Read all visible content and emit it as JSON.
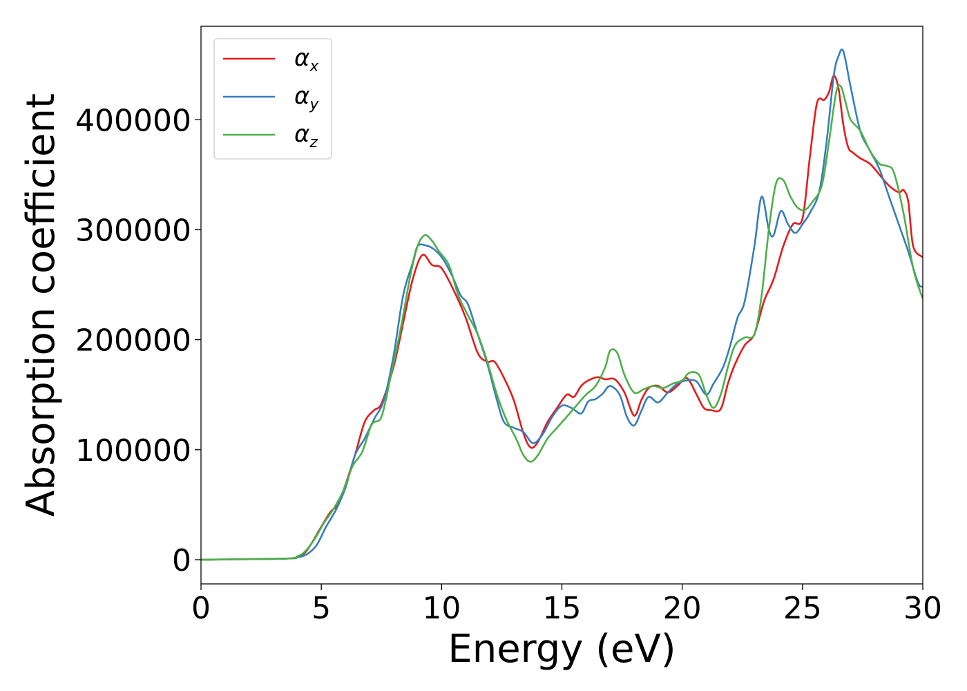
{
  "chart_data": {
    "type": "line",
    "title": "",
    "xlabel": "Energy (eV)",
    "ylabel": "Absorption coefficient",
    "xlim": [
      0,
      30
    ],
    "ylim": [
      -22000,
      485000
    ],
    "xticks": [
      0,
      5,
      10,
      15,
      20,
      25,
      30
    ],
    "xtick_labels": [
      "0",
      "5",
      "10",
      "15",
      "20",
      "25",
      "30"
    ],
    "yticks": [
      0,
      100000,
      200000,
      300000,
      400000
    ],
    "ytick_labels": [
      "0",
      "100000",
      "200000",
      "300000",
      "400000"
    ],
    "grid": false,
    "legend_position": "top-left",
    "series": [
      {
        "name": "α",
        "subscript": "x",
        "color": "#e41a1c",
        "x": [
          0,
          3.5,
          4.0,
          4.3,
          4.6,
          5.0,
          5.4,
          5.7,
          6.0,
          6.4,
          6.8,
          7.2,
          7.5,
          8.0,
          8.4,
          8.8,
          9.2,
          9.6,
          10.0,
          10.5,
          11.0,
          11.5,
          11.9,
          12.2,
          12.6,
          13.0,
          13.4,
          13.7,
          14.0,
          14.4,
          14.8,
          15.2,
          15.5,
          15.8,
          16.1,
          16.5,
          16.8,
          17.2,
          17.6,
          18.0,
          18.3,
          18.6,
          19.0,
          19.4,
          19.8,
          20.2,
          20.6,
          20.9,
          21.2,
          21.6,
          21.9,
          22.2,
          22.6,
          23.0,
          23.4,
          23.8,
          24.2,
          24.6,
          25.0,
          25.3,
          25.6,
          25.9,
          26.1,
          26.3,
          26.5,
          26.7,
          26.9,
          27.1,
          27.4,
          27.8,
          28.2,
          28.6,
          29.0,
          29.2,
          29.4,
          29.6,
          30.0
        ],
        "y": [
          0,
          1000,
          3000,
          6000,
          15000,
          30000,
          44000,
          50000,
          68000,
          95000,
          125000,
          136000,
          142000,
          175000,
          215000,
          255000,
          277000,
          268000,
          265000,
          245000,
          220000,
          188000,
          180000,
          180000,
          165000,
          145000,
          115000,
          102000,
          107000,
          125000,
          138000,
          150000,
          148000,
          158000,
          163000,
          166000,
          164000,
          164000,
          152000,
          131000,
          145000,
          156000,
          158000,
          152000,
          158000,
          165000,
          150000,
          138000,
          136000,
          137000,
          160000,
          178000,
          195000,
          205000,
          235000,
          255000,
          285000,
          305000,
          310000,
          365000,
          415000,
          418000,
          425000,
          440000,
          428000,
          395000,
          375000,
          370000,
          365000,
          360000,
          350000,
          340000,
          334000,
          336000,
          325000,
          285000,
          275000
        ]
      },
      {
        "name": "α",
        "subscript": "y",
        "color": "#377eb8",
        "x": [
          0,
          3.5,
          4.0,
          4.4,
          4.8,
          5.2,
          5.6,
          6.0,
          6.4,
          6.8,
          7.2,
          7.6,
          8.0,
          8.4,
          8.8,
          9.0,
          9.3,
          9.7,
          10.1,
          10.5,
          10.8,
          11.1,
          11.5,
          11.9,
          12.3,
          12.6,
          13.0,
          13.4,
          13.8,
          14.2,
          14.6,
          15.0,
          15.4,
          15.8,
          16.1,
          16.4,
          16.7,
          17.0,
          17.4,
          17.7,
          18.0,
          18.3,
          18.6,
          19.0,
          19.4,
          19.8,
          20.2,
          20.6,
          21.0,
          21.3,
          21.7,
          22.0,
          22.3,
          22.6,
          23.0,
          23.3,
          23.6,
          23.8,
          24.1,
          24.4,
          24.7,
          25.0,
          25.3,
          25.7,
          26.0,
          26.3,
          26.5,
          26.7,
          27.0,
          27.4,
          27.8,
          28.2,
          28.6,
          29.0,
          29.4,
          29.8,
          30.0
        ],
        "y": [
          0,
          1000,
          2000,
          5000,
          13000,
          30000,
          45000,
          65000,
          95000,
          110000,
          128000,
          145000,
          185000,
          240000,
          270000,
          285000,
          286000,
          282000,
          272000,
          255000,
          240000,
          232000,
          205000,
          178000,
          145000,
          125000,
          120000,
          116000,
          106000,
          114000,
          130000,
          140000,
          138000,
          133000,
          144000,
          146000,
          151000,
          158000,
          150000,
          130000,
          122000,
          135000,
          148000,
          143000,
          152000,
          160000,
          163000,
          162000,
          150000,
          160000,
          175000,
          195000,
          220000,
          235000,
          285000,
          330000,
          300000,
          295000,
          317000,
          305000,
          297000,
          305000,
          315000,
          335000,
          380000,
          440000,
          458000,
          462000,
          430000,
          390000,
          372000,
          355000,
          330000,
          305000,
          280000,
          252000,
          248000
        ]
      },
      {
        "name": "α",
        "subscript": "z",
        "color": "#4daf4a",
        "x": [
          0,
          3.5,
          4.0,
          4.3,
          4.7,
          5.1,
          5.5,
          5.9,
          6.3,
          6.7,
          7.1,
          7.5,
          7.9,
          8.3,
          8.7,
          9.0,
          9.3,
          9.6,
          9.9,
          10.3,
          10.7,
          11.1,
          11.5,
          11.9,
          12.3,
          12.7,
          13.1,
          13.4,
          13.7,
          14.0,
          14.4,
          14.8,
          15.2,
          15.6,
          16.0,
          16.4,
          16.8,
          17.0,
          17.3,
          17.6,
          18.0,
          18.4,
          18.8,
          19.2,
          19.6,
          20.0,
          20.3,
          20.7,
          21.0,
          21.3,
          21.6,
          21.9,
          22.2,
          22.6,
          23.0,
          23.3,
          23.6,
          23.9,
          24.2,
          24.5,
          24.8,
          25.1,
          25.4,
          25.8,
          26.1,
          26.4,
          26.6,
          26.8,
          27.0,
          27.4,
          27.8,
          28.2,
          28.5,
          28.8,
          29.2,
          29.6,
          30.0
        ],
        "y": [
          0,
          1000,
          3000,
          7000,
          18000,
          33000,
          46000,
          62000,
          85000,
          98000,
          123000,
          130000,
          168000,
          210000,
          258000,
          285000,
          295000,
          290000,
          280000,
          268000,
          240000,
          222000,
          205000,
          180000,
          150000,
          127000,
          110000,
          95000,
          89000,
          95000,
          110000,
          120000,
          130000,
          140000,
          150000,
          158000,
          175000,
          190000,
          188000,
          168000,
          152000,
          155000,
          158000,
          156000,
          160000,
          163000,
          170000,
          168000,
          150000,
          138000,
          150000,
          175000,
          195000,
          202000,
          205000,
          240000,
          300000,
          342000,
          345000,
          330000,
          320000,
          318000,
          325000,
          340000,
          380000,
          425000,
          430000,
          415000,
          400000,
          390000,
          372000,
          360000,
          358000,
          352000,
          315000,
          265000,
          237000
        ]
      }
    ]
  }
}
